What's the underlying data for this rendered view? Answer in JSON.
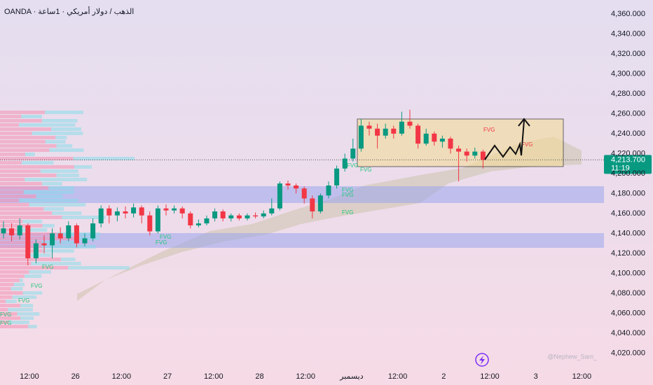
{
  "chart_data": {
    "type": "candlestick",
    "title": "OANDA · الذهب / دولار أمريكي · 1ساعة",
    "watermark": "@Nephew_Sam_",
    "up_color": "#089981",
    "down_color": "#f23645",
    "ylim": [
      4002,
      4374
    ],
    "yticks": [
      {
        "value": 4020,
        "label": "4,020.000"
      },
      {
        "value": 4040,
        "label": "4,040.000"
      },
      {
        "value": 4060,
        "label": "4,060.000"
      },
      {
        "value": 4080,
        "label": "4,080.000"
      },
      {
        "value": 4100,
        "label": "4,100.000"
      },
      {
        "value": 4120,
        "label": "4,120.000"
      },
      {
        "value": 4140,
        "label": "4,140.000"
      },
      {
        "value": 4160,
        "label": "4,160.000"
      },
      {
        "value": 4180,
        "label": "4,180.000"
      },
      {
        "value": 4200,
        "label": "4,200.000"
      },
      {
        "value": 4220,
        "label": "4,220.000"
      },
      {
        "value": 4240,
        "label": "4,240.000"
      },
      {
        "value": 4260,
        "label": "4,260.000"
      },
      {
        "value": 4280,
        "label": "4,280.000"
      },
      {
        "value": 4300,
        "label": "4,300.000"
      },
      {
        "value": 4320,
        "label": "4,320.000"
      },
      {
        "value": 4340,
        "label": "4,340.000"
      },
      {
        "value": 4360,
        "label": "4,360.000"
      }
    ],
    "grid": false,
    "x_labels": [
      "12:00",
      "26",
      "12:00",
      "27",
      "12:00",
      "28",
      "12:00",
      "ديسمبر",
      "12:00",
      "2",
      "12:00",
      "3",
      "12:00"
    ],
    "last_price": {
      "value": 4213.7,
      "label": "4,213.700"
    },
    "countdown": "11:19",
    "fvg_labels": [
      "FVG",
      "FVG",
      "FVG",
      "FVG",
      "FVG",
      "FVG",
      "FVG",
      "FVG",
      "FVG",
      "FVG",
      "FVG",
      "FVG",
      "FVG",
      "FVG"
    ],
    "candles": [
      [
        4140,
        4152,
        4135,
        4145
      ],
      [
        4145,
        4150,
        4132,
        4138
      ],
      [
        4138,
        4155,
        4134,
        4148
      ],
      [
        4148,
        4150,
        4108,
        4115
      ],
      [
        4115,
        4134,
        4110,
        4130
      ],
      [
        4130,
        4138,
        4120,
        4128
      ],
      [
        4128,
        4145,
        4115,
        4140
      ],
      [
        4140,
        4146,
        4130,
        4135
      ],
      [
        4135,
        4152,
        4132,
        4148
      ],
      [
        4148,
        4150,
        4126,
        4130
      ],
      [
        4130,
        4140,
        4127,
        4135
      ],
      [
        4135,
        4155,
        4132,
        4150
      ],
      [
        4150,
        4168,
        4146,
        4165
      ],
      [
        4165,
        4168,
        4150,
        4158
      ],
      [
        4158,
        4166,
        4152,
        4162
      ],
      [
        4162,
        4167,
        4155,
        4160
      ],
      [
        4160,
        4170,
        4156,
        4166
      ],
      [
        4166,
        4168,
        4150,
        4158
      ],
      [
        4158,
        4162,
        4138,
        4142
      ],
      [
        4142,
        4168,
        4140,
        4165
      ],
      [
        4165,
        4169,
        4158,
        4163
      ],
      [
        4163,
        4168,
        4160,
        4165
      ],
      [
        4165,
        4167,
        4155,
        4160
      ],
      [
        4160,
        4162,
        4145,
        4148
      ],
      [
        4148,
        4154,
        4146,
        4150
      ],
      [
        4150,
        4158,
        4148,
        4155
      ],
      [
        4155,
        4165,
        4152,
        4162
      ],
      [
        4162,
        4164,
        4152,
        4155
      ],
      [
        4155,
        4160,
        4152,
        4158
      ],
      [
        4158,
        4160,
        4153,
        4155
      ],
      [
        4155,
        4160,
        4153,
        4158
      ],
      [
        4158,
        4161,
        4155,
        4157
      ],
      [
        4157,
        4163,
        4155,
        4160
      ],
      [
        4160,
        4175,
        4158,
        4165
      ],
      [
        4165,
        4192,
        4163,
        4190
      ],
      [
        4190,
        4193,
        4184,
        4188
      ],
      [
        4188,
        4190,
        4180,
        4185
      ],
      [
        4185,
        4187,
        4170,
        4175
      ],
      [
        4175,
        4178,
        4155,
        4162
      ],
      [
        4162,
        4180,
        4160,
        4178
      ],
      [
        4178,
        4192,
        4175,
        4188
      ],
      [
        4188,
        4208,
        4185,
        4205
      ],
      [
        4205,
        4220,
        4202,
        4215
      ],
      [
        4215,
        4235,
        4212,
        4225
      ],
      [
        4225,
        4255,
        4222,
        4248
      ],
      [
        4248,
        4252,
        4238,
        4245
      ],
      [
        4245,
        4250,
        4225,
        4238
      ],
      [
        4238,
        4250,
        4235,
        4245
      ],
      [
        4245,
        4248,
        4235,
        4240
      ],
      [
        4240,
        4262,
        4238,
        4252
      ],
      [
        4252,
        4264,
        4245,
        4248
      ],
      [
        4248,
        4250,
        4225,
        4230
      ],
      [
        4230,
        4245,
        4228,
        4240
      ],
      [
        4240,
        4242,
        4228,
        4232
      ],
      [
        4232,
        4238,
        4226,
        4235
      ],
      [
        4235,
        4237,
        4220,
        4225
      ],
      [
        4225,
        4228,
        4192,
        4222
      ],
      [
        4222,
        4225,
        4212,
        4218
      ],
      [
        4218,
        4226,
        4215,
        4222
      ],
      [
        4222,
        4224,
        4205,
        4213.7
      ]
    ]
  }
}
